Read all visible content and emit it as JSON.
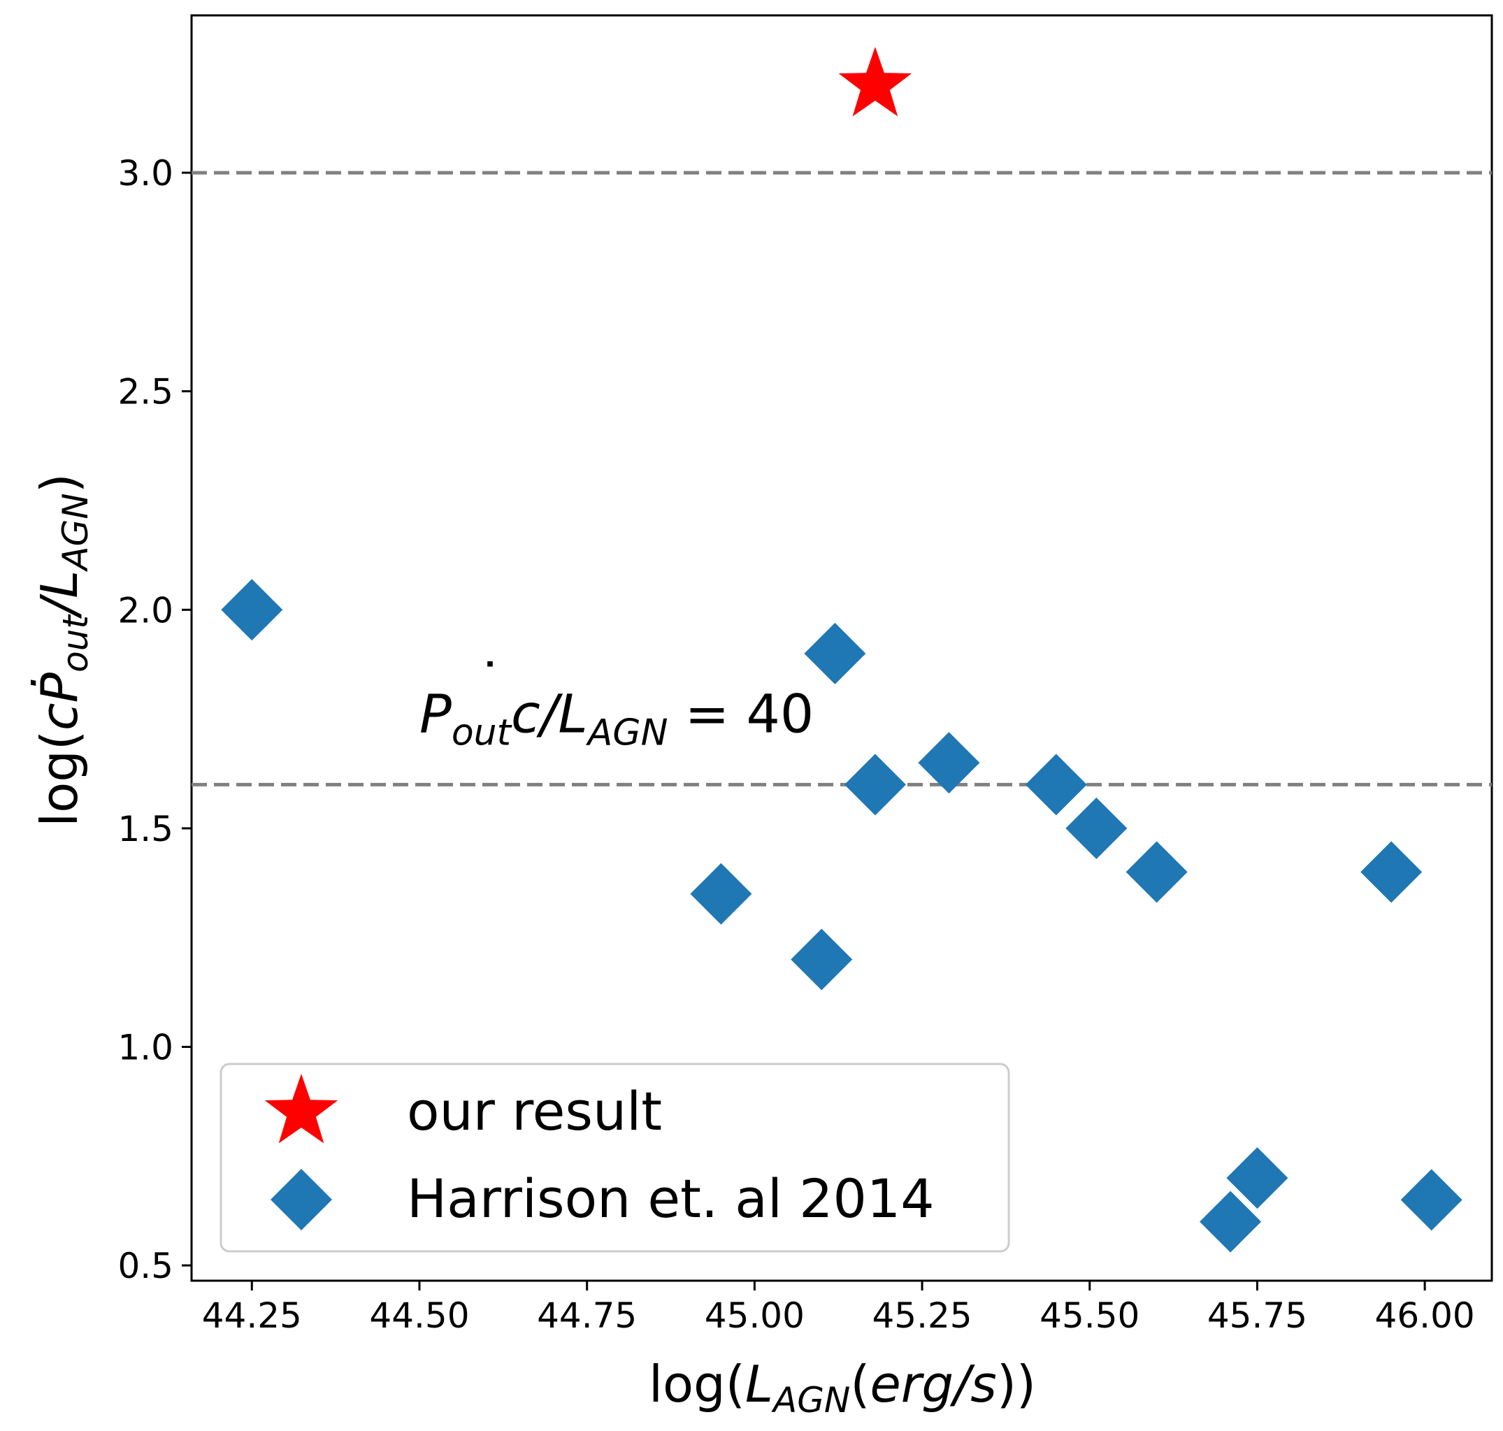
{
  "chart_data": {
    "type": "scatter",
    "xlim": [
      44.16,
      46.1
    ],
    "ylim": [
      0.465,
      3.36
    ],
    "xticks": [
      44.25,
      44.5,
      44.75,
      45.0,
      45.25,
      45.5,
      45.75,
      46.0
    ],
    "xtick_labels": [
      "44.25",
      "44.50",
      "44.75",
      "45.00",
      "45.25",
      "45.50",
      "45.75",
      "46.00"
    ],
    "yticks": [
      0.5,
      1.0,
      1.5,
      2.0,
      2.5,
      3.0
    ],
    "ytick_labels": [
      "0.5",
      "1.0",
      "1.5",
      "2.0",
      "2.5",
      "3.0"
    ],
    "xlabel": {
      "pre": "log(",
      "var": "L",
      "sub": "AGN",
      "mid": "(",
      "unit": "erg/s",
      "post": "))"
    },
    "ylabel": {
      "pre": "log(",
      "var": "cṖ",
      "sub1": "out",
      "slash": "/L",
      "sub2": "AGN",
      "post": ")"
    },
    "hlines": [
      {
        "y": 3.0,
        "color": "#808080",
        "style": "dashed"
      },
      {
        "y": 1.6,
        "color": "#808080",
        "style": "dashed"
      }
    ],
    "annotation": {
      "var": "P",
      "dot": "˙",
      "sub1": "out",
      "mid": "c/L",
      "sub2": "AGN",
      "rhs": " = 40",
      "x": 44.5,
      "y": 1.72
    },
    "legend": {
      "position": "lower-left"
    },
    "series": [
      {
        "name": "our result",
        "marker": "star",
        "color": "#ff0000",
        "points": [
          {
            "x": 45.18,
            "y": 3.2
          }
        ]
      },
      {
        "name": "Harrison et. al 2014",
        "marker": "diamond",
        "color": "#1f77b4",
        "points": [
          {
            "x": 44.25,
            "y": 2.0
          },
          {
            "x": 44.95,
            "y": 1.35
          },
          {
            "x": 45.1,
            "y": 1.2
          },
          {
            "x": 45.12,
            "y": 1.9
          },
          {
            "x": 45.18,
            "y": 1.6
          },
          {
            "x": 45.29,
            "y": 1.65
          },
          {
            "x": 45.45,
            "y": 1.6
          },
          {
            "x": 45.51,
            "y": 1.5
          },
          {
            "x": 45.6,
            "y": 1.4
          },
          {
            "x": 45.71,
            "y": 0.6
          },
          {
            "x": 45.75,
            "y": 0.7
          },
          {
            "x": 45.95,
            "y": 1.4
          },
          {
            "x": 46.01,
            "y": 0.65
          }
        ]
      }
    ]
  }
}
